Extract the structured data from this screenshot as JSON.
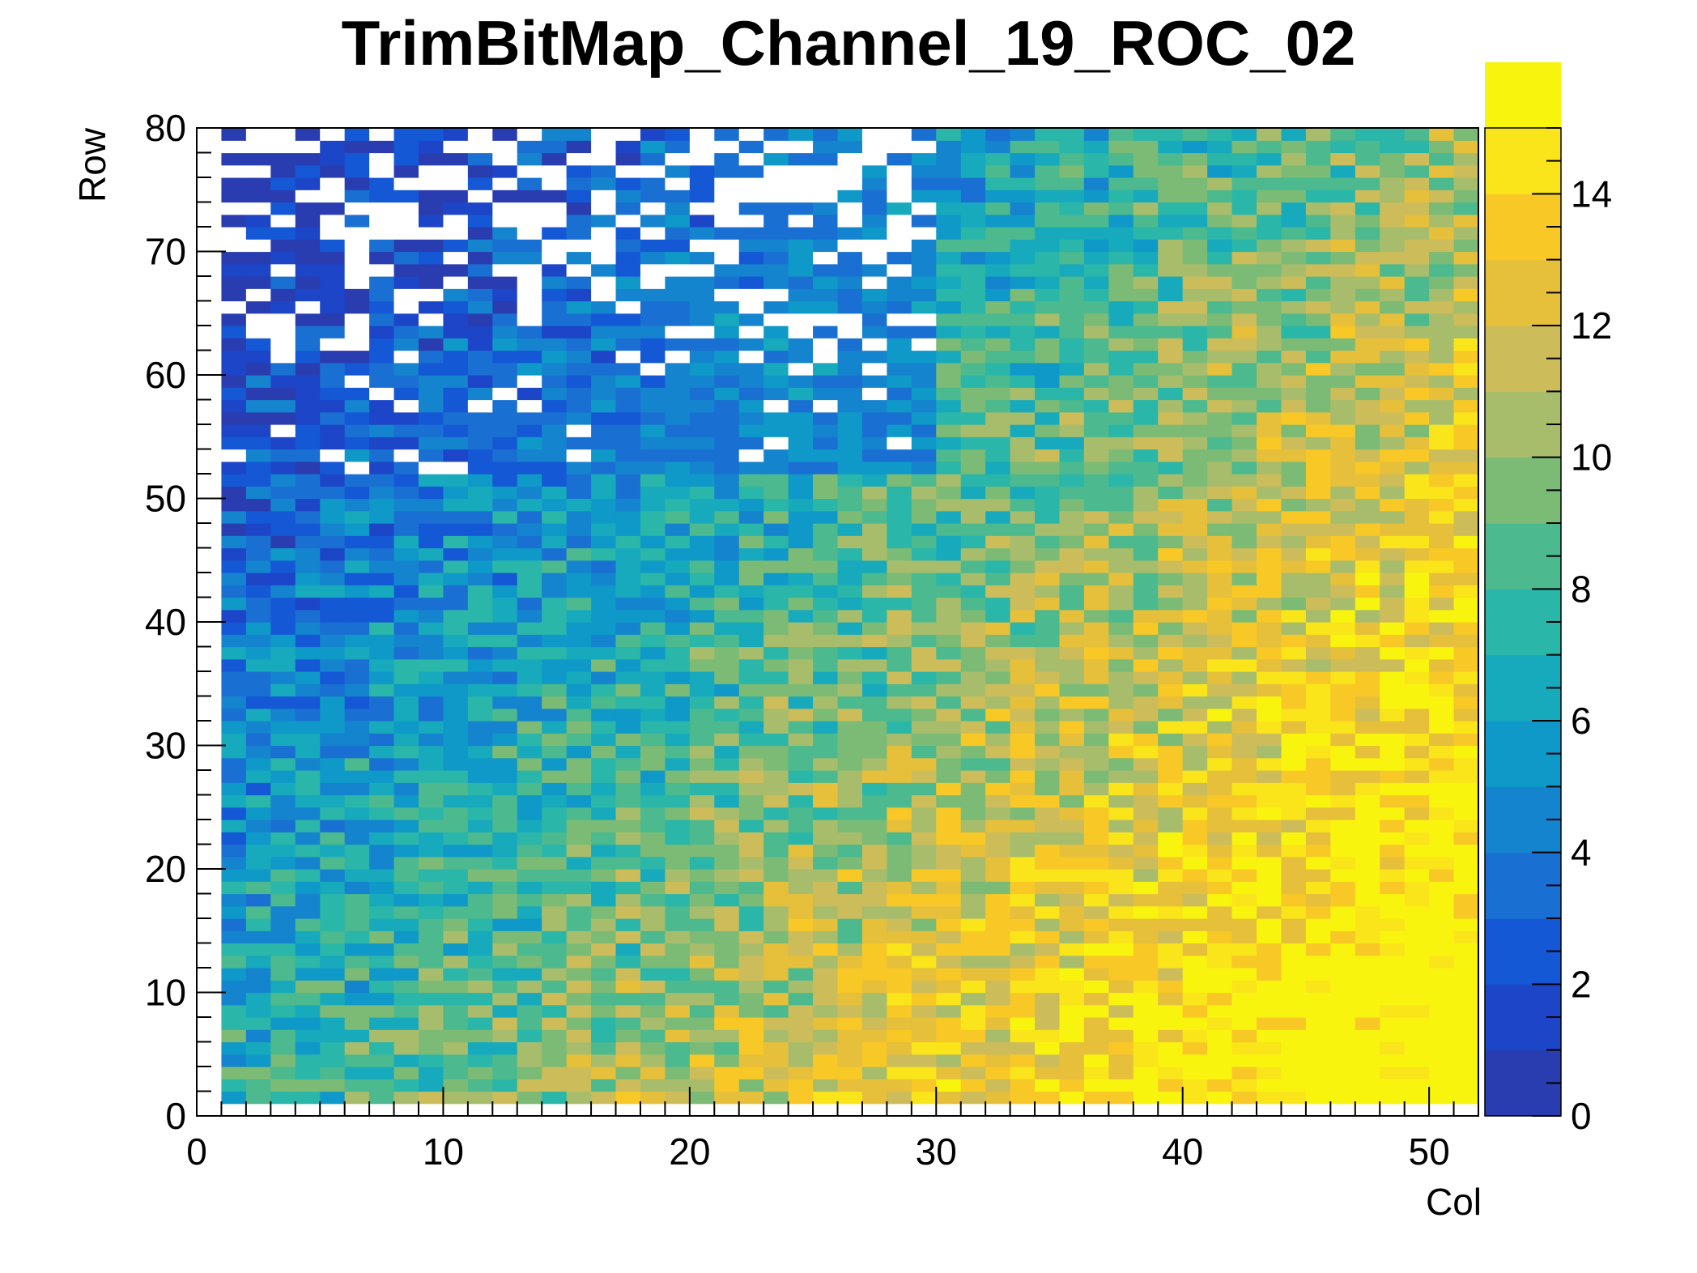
{
  "chart_data": {
    "type": "heatmap",
    "title": "TrimBitMap_Channel_19_ROC_02",
    "xlabel": "Col",
    "ylabel": "Row",
    "xlim": [
      0,
      52
    ],
    "ylim": [
      0,
      80
    ],
    "zlim": [
      0,
      15
    ],
    "x_ticks": [
      "0",
      "10",
      "20",
      "30",
      "40",
      "50"
    ],
    "y_ticks": [
      "0",
      "10",
      "20",
      "30",
      "40",
      "50",
      "60",
      "70",
      "80"
    ],
    "z_ticks": [
      "0",
      "2",
      "4",
      "6",
      "8",
      "10",
      "12",
      "14"
    ],
    "colormap": [
      "#2a3db0",
      "#1c45c8",
      "#1458d6",
      "#1a70d2",
      "#1584cf",
      "#0f99c8",
      "#17aabd",
      "#2ab6a9",
      "#4cb98e",
      "#7bbb76",
      "#a8bd6b",
      "#cdbc5a",
      "#e6bf3b",
      "#f8c827",
      "#f9e51a",
      "#f9f40e"
    ],
    "empty_cell_color": "#ffffff",
    "occupied_cols": [
      1,
      51
    ],
    "occupied_rows": [
      1,
      79
    ],
    "cells_description": "2D map of trim bit value per pixel (col, row). Values increase from ~2 (blue) at top-left to ~15 (yellow) at bottom-right. Many empty (white) cells at rows 52-79 for cols 1-29.",
    "sample_rows": [
      {
        "row": 75,
        "values_by_col_range": {
          "1-29": "0-3 or empty",
          "30-51": "4-8"
        }
      },
      {
        "row": 55,
        "values_by_col_range": {
          "1-29": "2-6",
          "30-51": "6-12"
        }
      },
      {
        "row": 35,
        "values_by_col_range": {
          "1-29": "4-8",
          "30-51": "10-15"
        }
      },
      {
        "row": 10,
        "values_by_col_range": {
          "1-29": "7-12",
          "30-51": "13-15"
        }
      }
    ]
  }
}
